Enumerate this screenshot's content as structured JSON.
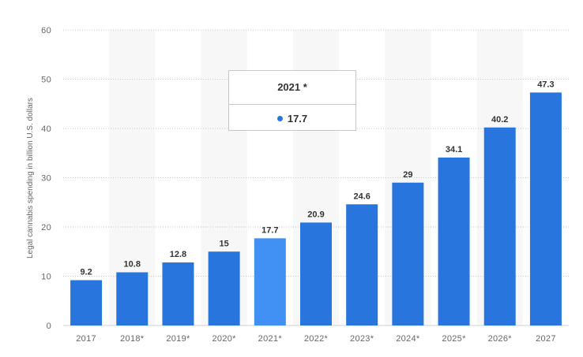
{
  "chart_data": {
    "type": "bar",
    "categories": [
      "2017",
      "2018*",
      "2019*",
      "2020*",
      "2021*",
      "2022*",
      "2023*",
      "2024*",
      "2025*",
      "2026*",
      "2027"
    ],
    "values": [
      9.2,
      10.8,
      12.8,
      15,
      17.7,
      20.9,
      24.6,
      29,
      34.1,
      40.2,
      47.3
    ],
    "data_labels": [
      "9.2",
      "10.8",
      "12.8",
      "15",
      "17.7",
      "20.9",
      "24.6",
      "29",
      "34.1",
      "40.2",
      "47.3"
    ],
    "ylabel": "Legal cannabis spending in billion U.S. dollars",
    "xlabel": "",
    "ylim": [
      0,
      60
    ],
    "yticks": [
      0,
      10,
      20,
      30,
      40,
      50,
      60
    ],
    "grid": true,
    "highlighted_index": 4,
    "colors": {
      "bar": "#2876dd",
      "highlight": "#4191f5",
      "grid": "#c7c7c7",
      "band": "#f7f7f7"
    }
  },
  "tooltip": {
    "title": "2021 *",
    "value": "17.7",
    "dot_color": "#2876dd"
  }
}
